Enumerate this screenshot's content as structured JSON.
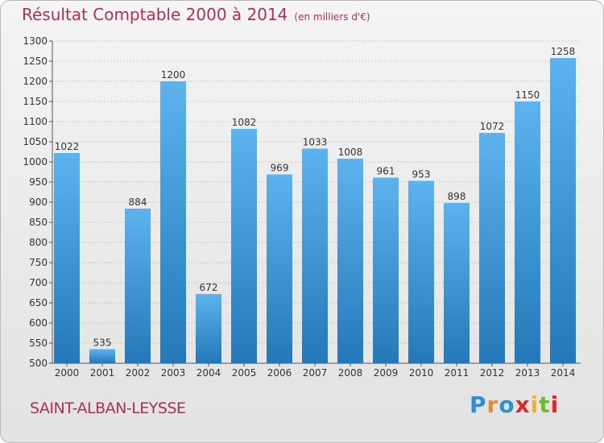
{
  "title": "Résultat Comptable 2000 à 2014",
  "unit_note": "(en milliers d'€)",
  "commune": "SAINT-ALBAN-LEYSSE",
  "brand": {
    "letters": [
      "P",
      "r",
      "o",
      "x",
      "i",
      "t",
      "i"
    ],
    "colors": [
      "#2f8fd0",
      "#f08a1c",
      "#2f8fd0",
      "#e3262b",
      "#f3b51b",
      "#76b82a",
      "#e3262b"
    ]
  },
  "colors": {
    "title": "#a8325a",
    "bar_light": "#5cb3ee",
    "bar_dark": "#2478b8",
    "grid": "#c8c8c8"
  },
  "chart_data": {
    "type": "bar",
    "categories": [
      "2000",
      "2001",
      "2002",
      "2003",
      "2004",
      "2005",
      "2006",
      "2007",
      "2008",
      "2009",
      "2010",
      "2011",
      "2012",
      "2013",
      "2014"
    ],
    "values": [
      1022,
      535,
      884,
      1200,
      672,
      1082,
      969,
      1033,
      1008,
      961,
      953,
      898,
      1072,
      1150,
      1258
    ],
    "ylim": [
      500,
      1300
    ],
    "yticks": [
      500,
      550,
      600,
      650,
      700,
      750,
      800,
      850,
      900,
      950,
      1000,
      1050,
      1100,
      1150,
      1200,
      1250,
      1300
    ],
    "grid": true,
    "xlabel": "",
    "ylabel": ""
  }
}
